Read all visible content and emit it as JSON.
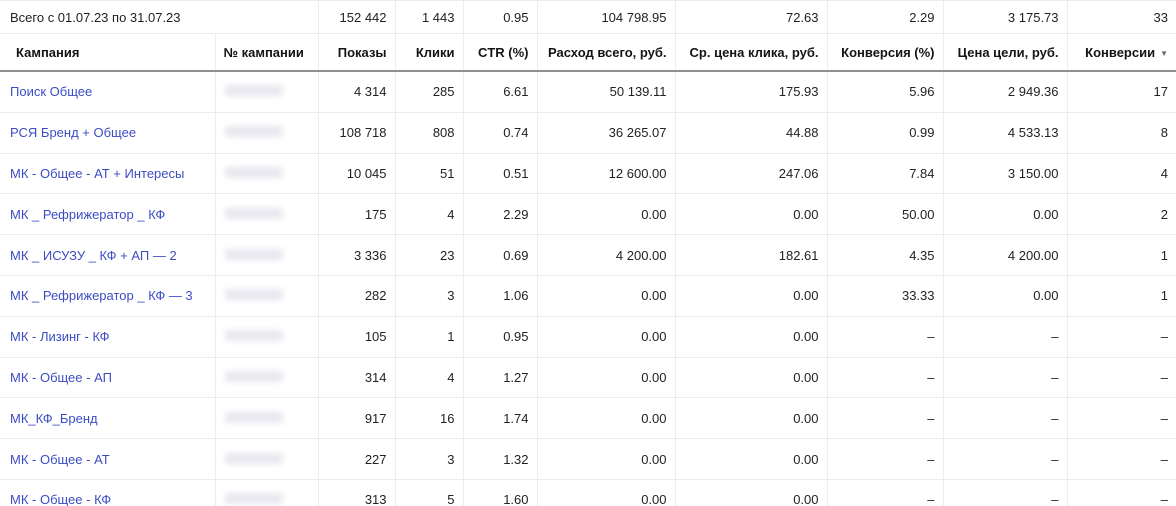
{
  "table": {
    "summary": {
      "label": "Всего с 01.07.23 по 31.07.23",
      "values": [
        "152 442",
        "1 443",
        "0.95",
        "104 798.95",
        "72.63",
        "2.29",
        "3 175.73",
        "33"
      ]
    },
    "header": {
      "columns": [
        "Кампания",
        "№ кампании",
        "Показы",
        "Клики",
        "CTR (%)",
        "Расход всего, руб.",
        "Ср. цена клика, руб.",
        "Конверсия (%)",
        "Цена цели, руб.",
        "Конверсии"
      ],
      "sorted_column": "Конверсии",
      "sort_direction": "desc",
      "sort_icon": "▼"
    },
    "rows": [
      {
        "campaign": "Поиск Общее",
        "number_redacted": true,
        "values": [
          "4 314",
          "285",
          "6.61",
          "50 139.11",
          "175.93",
          "5.96",
          "2 949.36",
          "17"
        ]
      },
      {
        "campaign": "РСЯ Бренд + Общее",
        "number_redacted": true,
        "values": [
          "108 718",
          "808",
          "0.74",
          "36 265.07",
          "44.88",
          "0.99",
          "4 533.13",
          "8"
        ]
      },
      {
        "campaign": "МК - Общее - АТ + Интересы",
        "number_redacted": true,
        "values": [
          "10 045",
          "51",
          "0.51",
          "12 600.00",
          "247.06",
          "7.84",
          "3 150.00",
          "4"
        ]
      },
      {
        "campaign": "МК _ Рефрижератор _ КФ",
        "number_redacted": true,
        "values": [
          "175",
          "4",
          "2.29",
          "0.00",
          "0.00",
          "50.00",
          "0.00",
          "2"
        ]
      },
      {
        "campaign": "МК _ ИСУЗУ _ КФ + АП — 2",
        "number_redacted": true,
        "values": [
          "3 336",
          "23",
          "0.69",
          "4 200.00",
          "182.61",
          "4.35",
          "4 200.00",
          "1"
        ]
      },
      {
        "campaign": "МК _ Рефрижератор _ КФ — 3",
        "number_redacted": true,
        "values": [
          "282",
          "3",
          "1.06",
          "0.00",
          "0.00",
          "33.33",
          "0.00",
          "1"
        ]
      },
      {
        "campaign": "МК - Лизинг - КФ",
        "number_redacted": true,
        "values": [
          "105",
          "1",
          "0.95",
          "0.00",
          "0.00",
          "–",
          "–",
          "–"
        ]
      },
      {
        "campaign": "МК - Общее - АП",
        "number_redacted": true,
        "values": [
          "314",
          "4",
          "1.27",
          "0.00",
          "0.00",
          "–",
          "–",
          "–"
        ]
      },
      {
        "campaign": "МК_КФ_Бренд",
        "number_redacted": true,
        "values": [
          "917",
          "16",
          "1.74",
          "0.00",
          "0.00",
          "–",
          "–",
          "–"
        ]
      },
      {
        "campaign": "МК - Общее - АТ",
        "number_redacted": true,
        "values": [
          "227",
          "3",
          "1.32",
          "0.00",
          "0.00",
          "–",
          "–",
          "–"
        ]
      },
      {
        "campaign": "МК - Общее - КФ",
        "number_redacted": true,
        "values": [
          "313",
          "5",
          "1.60",
          "0.00",
          "0.00",
          "–",
          "–",
          "–"
        ]
      }
    ],
    "colors": {
      "link": "#3c4dc4",
      "grid_line": "#ededed",
      "header_border": "#8f8f8f"
    }
  }
}
